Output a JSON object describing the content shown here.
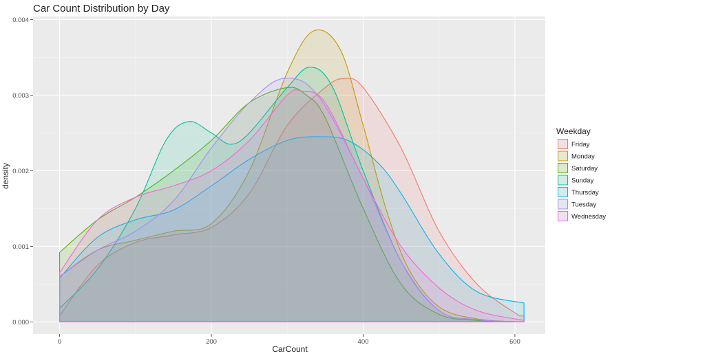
{
  "chart_data": {
    "type": "area",
    "title": "Car Count Distribution by Day",
    "xlabel": "CarCount",
    "ylabel": "density",
    "xlim": [
      -35,
      640
    ],
    "ylim": [
      -0.00016,
      0.00404
    ],
    "xticks": [
      0,
      200,
      400,
      600
    ],
    "yticks": [
      0.0,
      0.001,
      0.002,
      0.003,
      0.004
    ],
    "ytick_labels": [
      "0.000",
      "0.001",
      "0.002",
      "0.003",
      "0.004"
    ],
    "grid": true,
    "legend": {
      "title": "Weekday",
      "position": "right"
    },
    "series": [
      {
        "name": "Friday",
        "color": "#F8766D",
        "x": [
          0,
          50,
          100,
          150,
          200,
          250,
          300,
          350,
          375,
          400,
          450,
          500,
          550,
          600,
          612
        ],
        "y": [
          8e-05,
          0.00075,
          0.00105,
          0.00115,
          0.00125,
          0.0017,
          0.0026,
          0.0031,
          0.00322,
          0.0031,
          0.0023,
          0.0012,
          0.0005,
          0.00012,
          8e-05
        ]
      },
      {
        "name": "Monday",
        "color": "#C49A00",
        "x": [
          0,
          50,
          100,
          150,
          200,
          250,
          300,
          335,
          370,
          400,
          430,
          460,
          500,
          550,
          612
        ],
        "y": [
          0.0006,
          0.00095,
          0.00108,
          0.0012,
          0.0013,
          0.002,
          0.0033,
          0.00385,
          0.0036,
          0.0026,
          0.0015,
          0.0007,
          0.0002,
          4e-05,
          0.0
        ]
      },
      {
        "name": "Saturday",
        "color": "#53B400",
        "x": [
          0,
          50,
          100,
          150,
          200,
          250,
          300,
          325,
          350,
          400,
          450,
          500,
          550,
          612
        ],
        "y": [
          0.00092,
          0.00135,
          0.00165,
          0.002,
          0.0024,
          0.0029,
          0.0031,
          0.003,
          0.0027,
          0.0015,
          0.0005,
          0.0001,
          2e-05,
          0.0
        ]
      },
      {
        "name": "Sunday",
        "color": "#00C094",
        "x": [
          0,
          50,
          100,
          140,
          170,
          200,
          225,
          250,
          300,
          330,
          360,
          400,
          450,
          500,
          550,
          612
        ],
        "y": [
          0.00018,
          0.0007,
          0.0015,
          0.0024,
          0.00265,
          0.0025,
          0.00235,
          0.0025,
          0.0031,
          0.00337,
          0.0031,
          0.002,
          0.0008,
          0.00015,
          3e-05,
          0.0
        ]
      },
      {
        "name": "Thursday",
        "color": "#00B6EB",
        "x": [
          0,
          50,
          100,
          150,
          200,
          250,
          300,
          340,
          380,
          420,
          450,
          500,
          550,
          612
        ],
        "y": [
          0.00058,
          0.00112,
          0.00135,
          0.00148,
          0.0018,
          0.00215,
          0.0024,
          0.00245,
          0.0024,
          0.0021,
          0.0017,
          0.0009,
          0.0004,
          0.00025
        ]
      },
      {
        "name": "Tuesday",
        "color": "#A58AFF",
        "x": [
          0,
          50,
          100,
          150,
          200,
          250,
          295,
          340,
          400,
          450,
          500,
          550,
          612
        ],
        "y": [
          0.0006,
          0.00095,
          0.0012,
          0.0016,
          0.0023,
          0.0029,
          0.00322,
          0.003,
          0.0019,
          0.0008,
          0.00015,
          3e-05,
          0.0
        ]
      },
      {
        "name": "Wednesday",
        "color": "#FB61D7",
        "x": [
          0,
          50,
          100,
          150,
          200,
          250,
          300,
          320,
          350,
          400,
          450,
          500,
          550,
          612
        ],
        "y": [
          0.00065,
          0.00135,
          0.00165,
          0.0018,
          0.002,
          0.0024,
          0.003,
          0.00305,
          0.0029,
          0.0019,
          0.001,
          0.00045,
          0.00015,
          2e-05
        ]
      }
    ]
  }
}
